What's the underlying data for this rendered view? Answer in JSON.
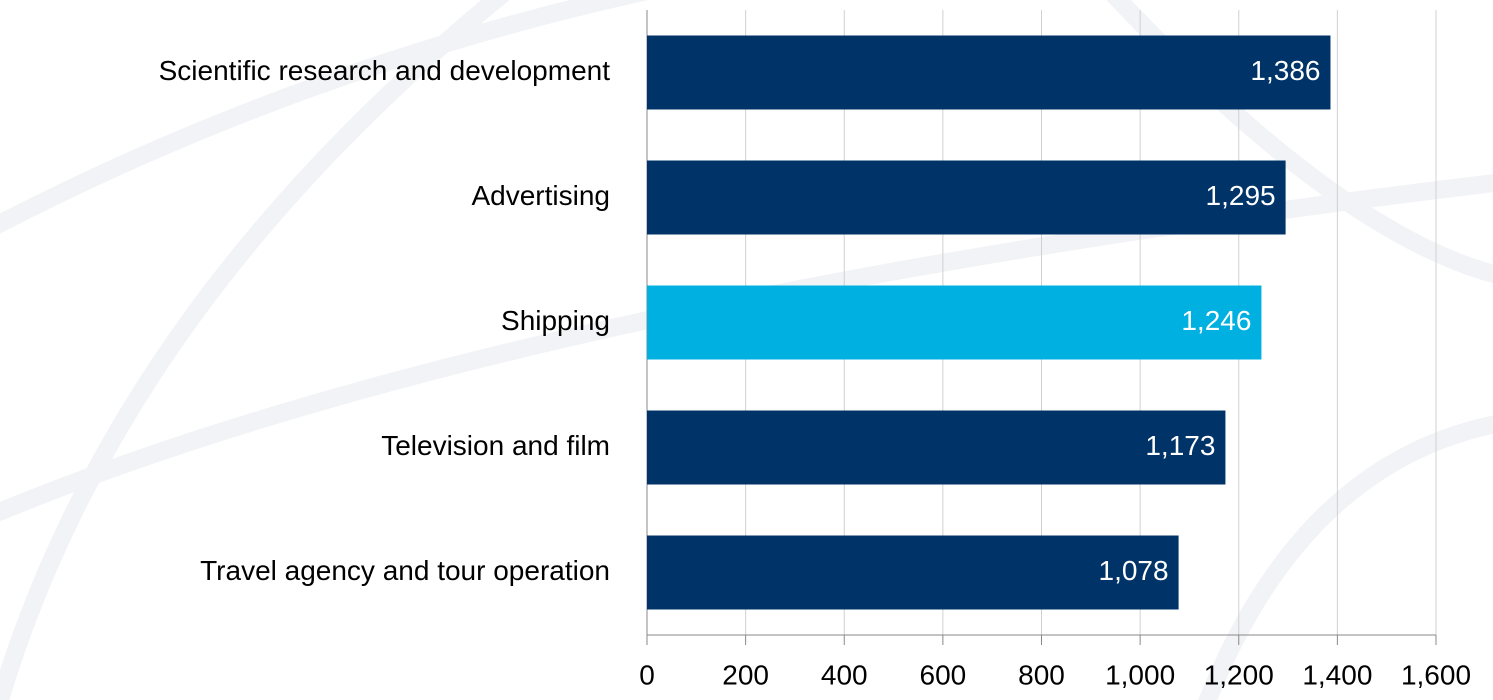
{
  "chart_data": {
    "type": "hbar",
    "categories": [
      "Scientific research and development",
      "Advertising",
      "Shipping",
      "Television and film",
      "Travel agency and tour operation"
    ],
    "values": [
      1386,
      1295,
      1246,
      1173,
      1078
    ],
    "value_labels": [
      "1,386",
      "1,295",
      "1,246",
      "1,173",
      "1,078"
    ],
    "colors": [
      "#003469",
      "#003469",
      "#00b0e0",
      "#003469",
      "#003469"
    ],
    "xlim": [
      0,
      1600
    ],
    "xticks": [
      0,
      200,
      400,
      600,
      800,
      {
        "value": 1000,
        "label": "1,000"
      },
      {
        "value": 1200,
        "label": "1,200"
      },
      {
        "value": 1400,
        "label": "1,400"
      },
      {
        "value": 1600,
        "label": "1,600"
      }
    ],
    "grid": true
  }
}
